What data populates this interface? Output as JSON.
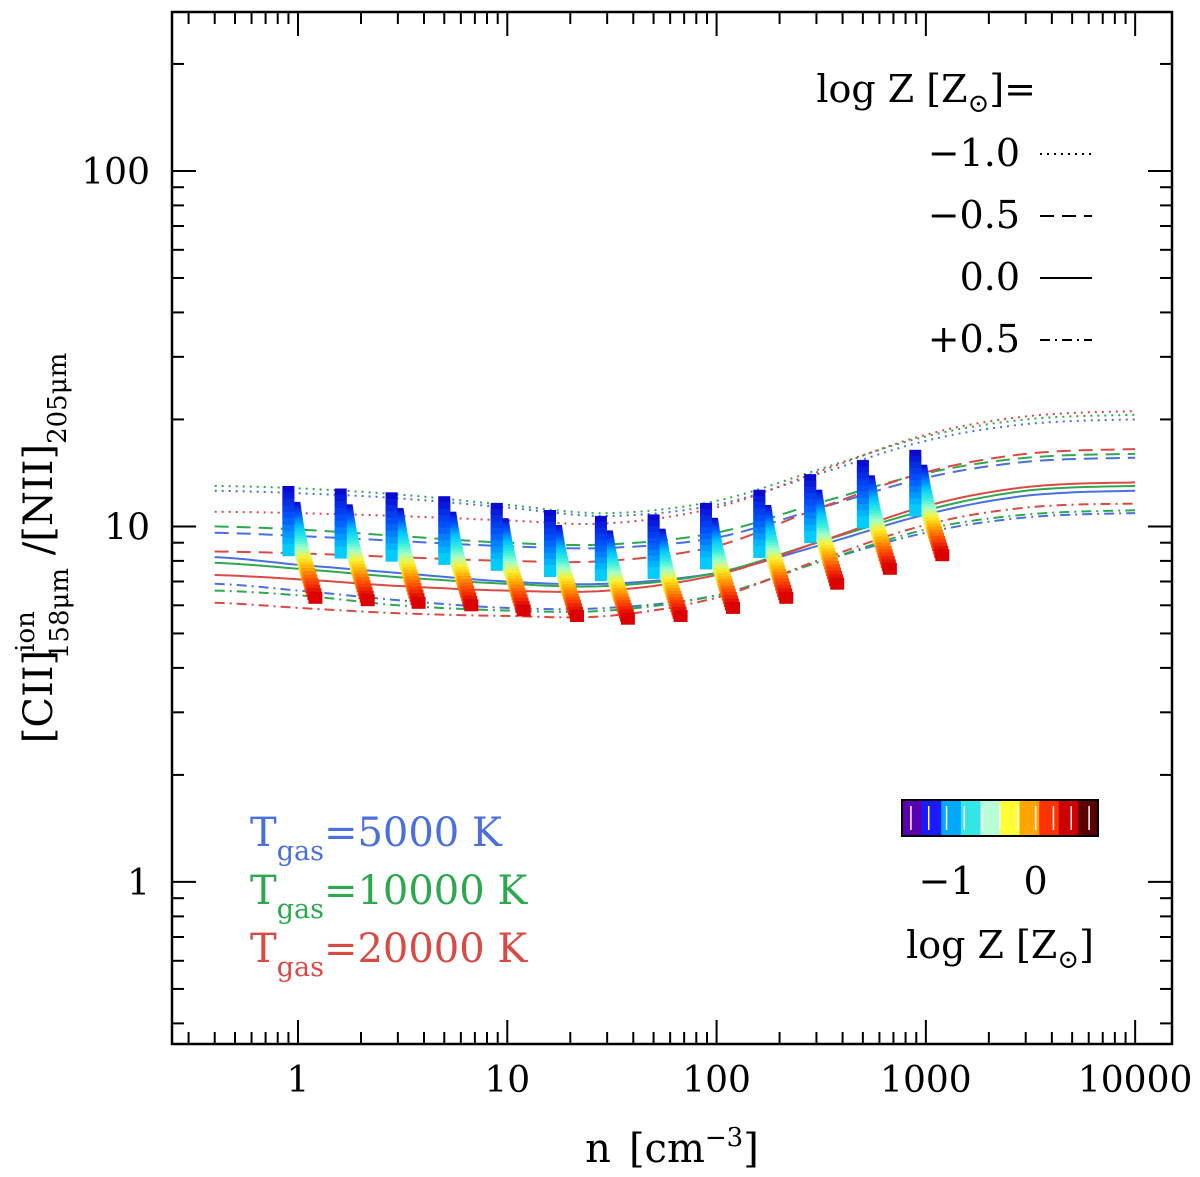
{
  "chart_data": {
    "type": "scatter",
    "title": "",
    "xlabel": {
      "main": "n",
      "unit_open": "[cm",
      "unit_exp": "−3",
      "unit_close": "]"
    },
    "ylabel": {
      "open": "[CII]",
      "sup": "ion",
      "sub1": "158μm",
      "mid": " /[NII]",
      "sub2": "205μm"
    },
    "xscale": "log",
    "yscale": "log",
    "xlim": [
      0.25,
      15000
    ],
    "ylim": [
      0.35,
      280
    ],
    "x_ticks": [
      {
        "value": 1,
        "label": "1"
      },
      {
        "value": 10,
        "label": "10"
      },
      {
        "value": 100,
        "label": "100"
      },
      {
        "value": 1000,
        "label": "1000"
      },
      {
        "value": 10000,
        "label": "10000"
      }
    ],
    "y_ticks": [
      {
        "value": 1,
        "label": "1"
      },
      {
        "value": 10,
        "label": "10"
      },
      {
        "value": 100,
        "label": "100"
      }
    ],
    "grid": false,
    "line_legend": {
      "title": "log Z [Z",
      "title_sub": "⊙",
      "title_end": "]=",
      "entries": [
        {
          "label": "−1.0",
          "style": "dotted"
        },
        {
          "label": "−0.5",
          "style": "dashed"
        },
        {
          "label": "0.0",
          "style": "solid"
        },
        {
          "label": "+0.5",
          "style": "dashdot"
        }
      ]
    },
    "temperature_legend": [
      {
        "t": "T",
        "sub": "gas",
        "rest": "=5000 K",
        "color": "#4a6fe0"
      },
      {
        "t": "T",
        "sub": "gas",
        "rest": "=10000 K",
        "color": "#2ea84f"
      },
      {
        "t": "T",
        "sub": "gas",
        "rest": "=20000 K",
        "color": "#d94a45"
      }
    ],
    "colorbar": {
      "title": "log Z [Z",
      "title_sub": "⊙",
      "title_end": "]",
      "range": [
        -1.5,
        0.7
      ],
      "ticks": [
        {
          "value": -1,
          "label": "−1"
        },
        {
          "value": 0,
          "label": "0"
        }
      ],
      "colors": [
        "#5a00b0",
        "#1a1aff",
        "#00a8ff",
        "#33e6e6",
        "#b8ffd8",
        "#ffff33",
        "#ffa500",
        "#ff3300",
        "#cc0000",
        "#5a0000"
      ]
    },
    "series": [
      {
        "metallicity": -1.0,
        "style": "dotted",
        "temperature": 5000,
        "color": "#4a6fe0",
        "x": [
          0.4,
          1,
          3,
          10,
          30,
          100,
          300,
          1000,
          3000,
          10000
        ],
        "y": [
          12.6,
          12.4,
          12.0,
          11.3,
          10.7,
          11.5,
          14.0,
          17.4,
          19.4,
          20.0
        ]
      },
      {
        "metallicity": -1.0,
        "style": "dotted",
        "temperature": 10000,
        "color": "#2ea84f",
        "x": [
          0.4,
          1,
          3,
          10,
          30,
          100,
          300,
          1000,
          3000,
          10000
        ],
        "y": [
          13.0,
          12.8,
          12.3,
          11.5,
          10.9,
          11.8,
          14.4,
          17.9,
          20.0,
          20.6
        ]
      },
      {
        "metallicity": -1.0,
        "style": "dotted",
        "temperature": 20000,
        "color": "#d94a45",
        "x": [
          0.4,
          1,
          3,
          10,
          30,
          100,
          300,
          1000,
          3000,
          10000
        ],
        "y": [
          11.0,
          10.9,
          10.7,
          10.4,
          10.2,
          11.3,
          14.2,
          18.1,
          20.4,
          21.1
        ]
      },
      {
        "metallicity": -0.5,
        "style": "dashed",
        "temperature": 5000,
        "color": "#4a6fe0",
        "x": [
          0.4,
          1,
          3,
          10,
          30,
          100,
          300,
          1000,
          3000,
          10000
        ],
        "y": [
          9.6,
          9.4,
          9.1,
          8.8,
          8.7,
          9.3,
          11.2,
          13.7,
          15.2,
          15.6
        ]
      },
      {
        "metallicity": -0.5,
        "style": "dashed",
        "temperature": 10000,
        "color": "#2ea84f",
        "x": [
          0.4,
          1,
          3,
          10,
          30,
          100,
          300,
          1000,
          3000,
          10000
        ],
        "y": [
          10.0,
          9.8,
          9.4,
          9.0,
          8.9,
          9.6,
          11.6,
          14.1,
          15.6,
          16.0
        ]
      },
      {
        "metallicity": -0.5,
        "style": "dashed",
        "temperature": 20000,
        "color": "#d94a45",
        "x": [
          0.4,
          1,
          3,
          10,
          30,
          100,
          300,
          1000,
          3000,
          10000
        ],
        "y": [
          8.5,
          8.4,
          8.2,
          8.0,
          8.0,
          8.8,
          11.2,
          14.2,
          16.0,
          16.5
        ]
      },
      {
        "metallicity": 0.0,
        "style": "solid",
        "temperature": 5000,
        "color": "#4a6fe0",
        "x": [
          0.4,
          1,
          3,
          10,
          30,
          100,
          300,
          1000,
          3000,
          10000
        ],
        "y": [
          8.2,
          7.8,
          7.4,
          7.0,
          6.9,
          7.4,
          8.8,
          10.8,
          12.2,
          12.6
        ]
      },
      {
        "metallicity": 0.0,
        "style": "solid",
        "temperature": 10000,
        "color": "#2ea84f",
        "x": [
          0.4,
          1,
          3,
          10,
          30,
          100,
          300,
          1000,
          3000,
          10000
        ],
        "y": [
          7.9,
          7.6,
          7.2,
          6.9,
          6.8,
          7.4,
          9.0,
          11.1,
          12.6,
          13.0
        ]
      },
      {
        "metallicity": 0.0,
        "style": "solid",
        "temperature": 20000,
        "color": "#d94a45",
        "x": [
          0.4,
          1,
          3,
          10,
          30,
          100,
          300,
          1000,
          3000,
          10000
        ],
        "y": [
          7.3,
          7.1,
          6.8,
          6.6,
          6.6,
          7.3,
          9.0,
          11.4,
          12.9,
          13.3
        ]
      },
      {
        "metallicity": 0.5,
        "style": "dashdot",
        "temperature": 5000,
        "color": "#4a6fe0",
        "x": [
          0.4,
          1,
          3,
          10,
          30,
          100,
          300,
          1000,
          3000,
          10000
        ],
        "y": [
          6.9,
          6.6,
          6.2,
          5.9,
          5.9,
          6.4,
          7.9,
          9.6,
          10.6,
          10.9
        ]
      },
      {
        "metallicity": 0.5,
        "style": "dashdot",
        "temperature": 10000,
        "color": "#2ea84f",
        "x": [
          0.4,
          1,
          3,
          10,
          30,
          100,
          300,
          1000,
          3000,
          10000
        ],
        "y": [
          6.6,
          6.4,
          6.0,
          5.8,
          5.8,
          6.4,
          7.9,
          9.8,
          10.8,
          11.1
        ]
      },
      {
        "metallicity": 0.5,
        "style": "dashdot",
        "temperature": 20000,
        "color": "#d94a45",
        "x": [
          0.4,
          1,
          3,
          10,
          30,
          100,
          300,
          1000,
          3000,
          10000
        ],
        "y": [
          6.1,
          5.9,
          5.7,
          5.6,
          5.6,
          6.3,
          8.0,
          10.1,
          11.3,
          11.6
        ]
      }
    ],
    "marker_groups": [
      {
        "x": 0.9,
        "y_top": 12.5,
        "y_bottom": 6.3
      },
      {
        "x": 1.6,
        "y_top": 12.3,
        "y_bottom": 6.2
      },
      {
        "x": 2.8,
        "y_top": 12.0,
        "y_bottom": 6.1
      },
      {
        "x": 5.0,
        "y_top": 11.7,
        "y_bottom": 6.0
      },
      {
        "x": 8.9,
        "y_top": 11.2,
        "y_bottom": 5.8
      },
      {
        "x": 16,
        "y_top": 10.7,
        "y_bottom": 5.6
      },
      {
        "x": 28,
        "y_top": 10.3,
        "y_bottom": 5.5
      },
      {
        "x": 50,
        "y_top": 10.4,
        "y_bottom": 5.6
      },
      {
        "x": 89,
        "y_top": 11.2,
        "y_bottom": 5.9
      },
      {
        "x": 160,
        "y_top": 12.2,
        "y_bottom": 6.3
      },
      {
        "x": 280,
        "y_top": 13.5,
        "y_bottom": 6.9
      },
      {
        "x": 500,
        "y_top": 14.8,
        "y_bottom": 7.6
      },
      {
        "x": 890,
        "y_top": 15.8,
        "y_bottom": 8.3
      }
    ]
  }
}
